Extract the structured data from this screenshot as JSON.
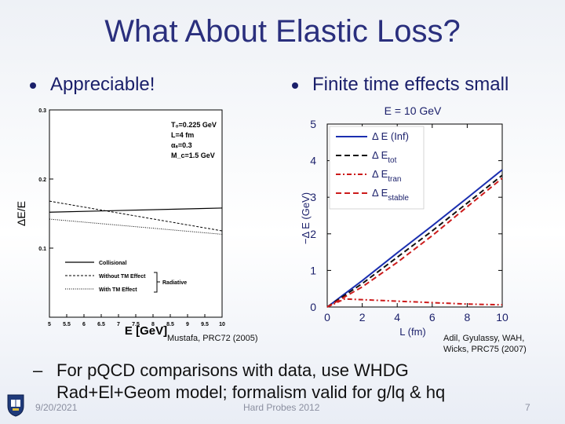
{
  "slide": {
    "title": "What About Elastic Loss?",
    "bullet_left": "Appreciable!",
    "bullet_right": "Finite time effects small",
    "cite_left": "Mustafa, PRC72 (2005)",
    "cite_right_1": "Adil, Gyulassy, WAH,",
    "cite_right_2": "Wicks, PRC75 (2007)",
    "sub_line_1": "For pQCD comparisons with data, use WHDG",
    "sub_line_2": "Rad+El+Geom model; formalism valid for g/lq & hq",
    "sub_dash": "–",
    "footer_date": "9/20/2021",
    "footer_center": "Hard Probes 2012",
    "footer_page": "7"
  },
  "chart_data": [
    {
      "type": "line",
      "ylabel": "ΔE/E",
      "xlabel": "E [GeV]",
      "xlim": [
        5,
        10
      ],
      "ylim": [
        0,
        0.3
      ],
      "x_ticks": [
        "5",
        "5.5",
        "6",
        "6.5",
        "7",
        "7.5",
        "8",
        "8.5",
        "9",
        "9.5",
        "10"
      ],
      "y_ticks": [
        "0.1",
        "0.2",
        "0.3"
      ],
      "params": [
        "T₀=0.225 GeV",
        "L=4 fm",
        "αₛ=0.3",
        "M_c=1.5 GeV"
      ],
      "legend": [
        "Collisional",
        "Without TM Effect",
        "With TM Effect"
      ],
      "brace_label": "Radiative",
      "series": [
        {
          "name": "Collisional",
          "x": [
            5,
            10
          ],
          "y": [
            0.152,
            0.158
          ]
        },
        {
          "name": "Without TM Effect",
          "x": [
            5,
            10
          ],
          "y": [
            0.168,
            0.125
          ]
        },
        {
          "name": "With TM Effect",
          "x": [
            5,
            10
          ],
          "y": [
            0.142,
            0.12
          ]
        }
      ]
    },
    {
      "type": "line",
      "title": "E = 10 GeV",
      "xlabel": "L (fm)",
      "ylabel": "−Δ E (GeV)",
      "xlim": [
        0,
        10
      ],
      "ylim": [
        0,
        5
      ],
      "x_ticks": [
        "0",
        "2",
        "4",
        "6",
        "8",
        "10"
      ],
      "y_ticks": [
        "0",
        "1",
        "2",
        "3",
        "4",
        "5"
      ],
      "legend": [
        "Δ E (Inf)",
        "Δ E_tot",
        "Δ E_tran",
        "Δ E_stable"
      ],
      "colors": {
        "inf": "#1b2fb0",
        "tot": "#111111",
        "tran": "#cc1b1b",
        "stable": "#cc1b1b"
      },
      "series": [
        {
          "name": "Δ E (Inf)",
          "x": [
            0,
            2,
            4,
            6,
            8,
            10
          ],
          "y": [
            0,
            0.72,
            1.48,
            2.22,
            2.98,
            3.75
          ]
        },
        {
          "name": "Δ E_tot",
          "x": [
            0,
            2,
            4,
            6,
            8,
            10
          ],
          "y": [
            0,
            0.64,
            1.36,
            2.08,
            2.84,
            3.6
          ]
        },
        {
          "name": "Δ E_tran",
          "x": [
            0,
            1,
            2,
            4,
            6,
            8,
            10
          ],
          "y": [
            0,
            0.22,
            0.2,
            0.16,
            0.12,
            0.08,
            0.06
          ]
        },
        {
          "name": "Δ E_stable",
          "x": [
            0,
            2,
            4,
            6,
            8,
            10
          ],
          "y": [
            0,
            0.55,
            1.22,
            1.95,
            2.74,
            3.52
          ]
        }
      ]
    }
  ]
}
